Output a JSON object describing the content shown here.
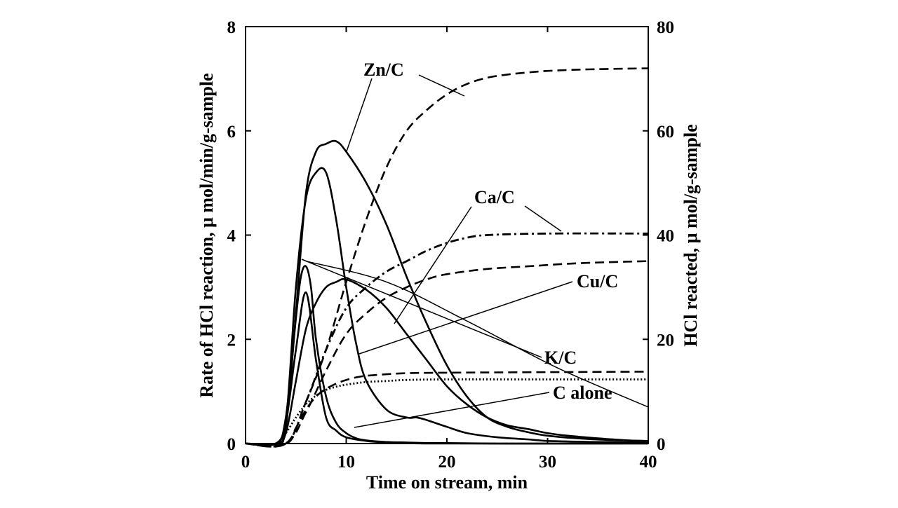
{
  "chart_data": {
    "type": "line",
    "xlabel": "Time on stream, min",
    "ylabel_left": "Rate of HCl reaction,  μ mol/min/g-sample",
    "ylabel_right": "HCl reacted,  μ mol/g-sample",
    "xlim": [
      0,
      40
    ],
    "ylim_left": [
      0,
      8
    ],
    "ylim_right": [
      0,
      80
    ],
    "x_ticks": [
      "0",
      "10",
      "20",
      "30",
      "40"
    ],
    "y_ticks_left": [
      "0",
      "2",
      "4",
      "6",
      "8"
    ],
    "y_ticks_right": [
      "0",
      "20",
      "40",
      "60",
      "80"
    ],
    "grid": false,
    "legend": "none",
    "series_labels": [
      "Zn/C",
      "Ca/C",
      "Cu/C",
      "K/C",
      "C alone"
    ],
    "series": [
      {
        "name": "Zn/C",
        "axis": "left",
        "style": "solid",
        "x": [
          0,
          3,
          4,
          5,
          6,
          7,
          8,
          9,
          10,
          12,
          14,
          16,
          18,
          20,
          22,
          24,
          26,
          28,
          30,
          33,
          36,
          40
        ],
        "y": [
          0,
          0,
          0.3,
          2.5,
          4.8,
          5.6,
          5.75,
          5.8,
          5.6,
          5.0,
          4.2,
          3.2,
          2.3,
          1.5,
          0.9,
          0.5,
          0.32,
          0.22,
          0.15,
          0.1,
          0.07,
          0.05
        ]
      },
      {
        "name": "Zn/C",
        "axis": "right",
        "style": "dash",
        "x": [
          0,
          4,
          6,
          8,
          10,
          12,
          14,
          16,
          18,
          20,
          22,
          24,
          26,
          28,
          30,
          34,
          40
        ],
        "y": [
          0,
          0,
          8,
          18,
          31,
          43,
          53,
          60,
          64,
          67,
          69,
          70.2,
          70.8,
          71.2,
          71.5,
          71.8,
          72
        ]
      },
      {
        "name": "Ca/C",
        "axis": "left",
        "style": "solid",
        "x": [
          0,
          3,
          4,
          5,
          6,
          7,
          8,
          9,
          10,
          11,
          12,
          14,
          16,
          17,
          18,
          20,
          22,
          25,
          28,
          30,
          35,
          40
        ],
        "y": [
          0,
          0,
          0.4,
          3.0,
          4.7,
          5.2,
          5.2,
          4.3,
          3.0,
          1.9,
          1.2,
          0.65,
          0.5,
          0.5,
          0.45,
          0.32,
          0.2,
          0.12,
          0.08,
          0.05,
          0.03,
          0.02
        ]
      },
      {
        "name": "Ca/C",
        "axis": "right",
        "style": "dashdot",
        "x": [
          0,
          4,
          6,
          8,
          10,
          12,
          14,
          16,
          18,
          20,
          22,
          24,
          30,
          40
        ],
        "y": [
          0,
          0,
          8,
          18,
          26,
          30,
          33,
          35,
          37,
          38.5,
          39.5,
          40,
          40.3,
          40.3
        ]
      },
      {
        "name": "Cu/C",
        "axis": "left",
        "style": "solid",
        "x": [
          0,
          3,
          4,
          5,
          6,
          7,
          8,
          9,
          10,
          12,
          14,
          16,
          18,
          20,
          22,
          24,
          26,
          28,
          30,
          32,
          35,
          38,
          40
        ],
        "y": [
          0,
          0,
          0.2,
          1.2,
          2.2,
          2.7,
          3.0,
          3.1,
          3.15,
          2.95,
          2.6,
          2.1,
          1.6,
          1.1,
          0.75,
          0.5,
          0.35,
          0.28,
          0.2,
          0.15,
          0.1,
          0.06,
          0.05
        ]
      },
      {
        "name": "Cu/C",
        "axis": "right",
        "style": "dash",
        "x": [
          0,
          4,
          6,
          8,
          10,
          12,
          14,
          16,
          18,
          20,
          24,
          28,
          32,
          36,
          40
        ],
        "y": [
          0,
          0,
          6,
          14,
          21,
          25,
          28,
          30,
          31.5,
          32.5,
          33.5,
          34,
          34.5,
          34.8,
          35
        ]
      },
      {
        "name": "K/C",
        "axis": "left",
        "style": "solid",
        "x": [
          0,
          3,
          4,
          5,
          5.5,
          6,
          6.5,
          7,
          8,
          9,
          10,
          11,
          12,
          14,
          16,
          18,
          20,
          25,
          30,
          40
        ],
        "y": [
          0,
          0,
          0.5,
          2.4,
          3.2,
          3.4,
          3.0,
          2.0,
          0.9,
          0.4,
          0.2,
          0.1,
          0.06,
          0.03,
          0.02,
          0.01,
          0.01,
          0,
          0,
          0
        ]
      },
      {
        "name": "K/C",
        "axis": "right",
        "style": "dash",
        "x": [
          0,
          4,
          5,
          6,
          7,
          8,
          9,
          10,
          11,
          12,
          14,
          16,
          20,
          30,
          40
        ],
        "y": [
          0,
          0,
          3,
          6.5,
          9,
          10.5,
          11.5,
          12.2,
          12.7,
          13.0,
          13.3,
          13.5,
          13.6,
          13.7,
          13.8
        ]
      },
      {
        "name": "C alone",
        "axis": "left",
        "style": "solid",
        "x": [
          0,
          3,
          4,
          5,
          6,
          7,
          8,
          9,
          10,
          12,
          14,
          16,
          20,
          40
        ],
        "y": [
          0,
          0,
          0.4,
          1.8,
          2.9,
          1.6,
          0.5,
          0.25,
          0.12,
          0.05,
          0.02,
          0.01,
          0,
          0
        ]
      },
      {
        "name": "C alone",
        "axis": "right",
        "style": "dot",
        "x": [
          0,
          3,
          4,
          5,
          6,
          7,
          8,
          9,
          10,
          12,
          14,
          16,
          20,
          30,
          40
        ],
        "y": [
          0,
          0,
          2,
          5,
          7.5,
          9.2,
          10.3,
          10.9,
          11.3,
          11.8,
          12.0,
          12.2,
          12.3,
          12.3,
          12.3
        ]
      },
      {
        "name": "",
        "axis": "left",
        "style": "thin",
        "x": [
          6,
          14,
          22,
          31,
          40
        ],
        "y": [
          3.5,
          3.1,
          2.35,
          1.45,
          0.7
        ]
      }
    ]
  }
}
